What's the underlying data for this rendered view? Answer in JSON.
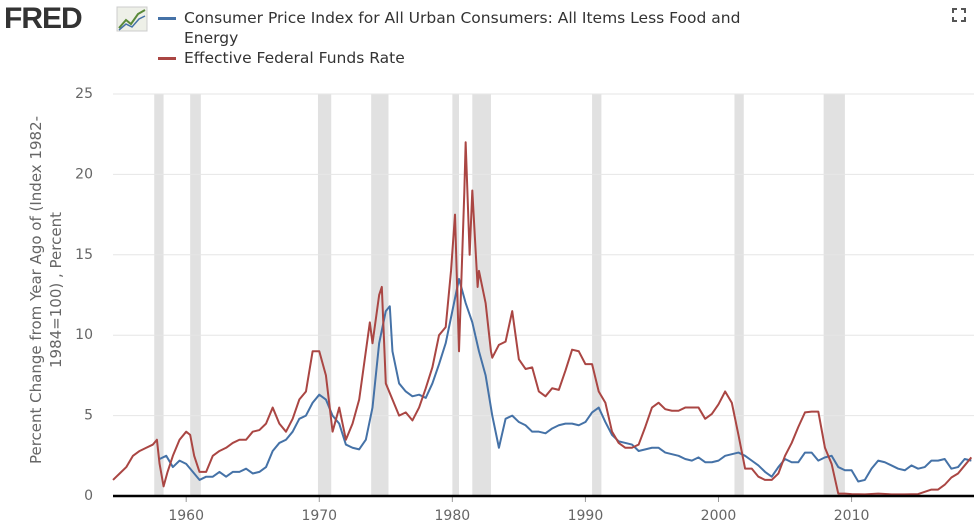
{
  "logo": "FRED",
  "chart_data": {
    "type": "line",
    "y_label": "Percent Change from Year Ago of (Index 1982-1984=100) , Percent",
    "xlim": [
      1954.5,
      2019.2
    ],
    "xticks": [
      1960,
      1970,
      1980,
      1990,
      2000,
      2010
    ],
    "ylim": [
      0,
      25
    ],
    "yticks": [
      0,
      5,
      10,
      15,
      20,
      25
    ],
    "grid": true,
    "recessions": [
      [
        1957.6,
        1958.3
      ],
      [
        1960.3,
        1961.1
      ],
      [
        1969.9,
        1970.9
      ],
      [
        1973.9,
        1975.2
      ],
      [
        1980.0,
        1980.5
      ],
      [
        1981.5,
        1982.9
      ],
      [
        1990.5,
        1991.2
      ],
      [
        2001.2,
        2001.9
      ],
      [
        2007.9,
        2009.5
      ]
    ],
    "recession_color": "#e1e1e1",
    "series": [
      {
        "name": "Consumer Price Index for All Urban Consumers: All Items Less Food and Energy",
        "color": "#4572a7",
        "x": [
          1958,
          1958.5,
          1959,
          1959.5,
          1960,
          1960.5,
          1961,
          1961.5,
          1962,
          1962.5,
          1963,
          1963.5,
          1964,
          1964.5,
          1965,
          1965.5,
          1966,
          1966.5,
          1967,
          1967.5,
          1968,
          1968.5,
          1969,
          1969.5,
          1970,
          1970.5,
          1971,
          1971.5,
          1972,
          1972.5,
          1973,
          1973.5,
          1974,
          1974.5,
          1975,
          1975.3,
          1975.5,
          1976,
          1976.5,
          1977,
          1977.5,
          1978,
          1978.5,
          1979,
          1979.5,
          1980,
          1980.5,
          1981,
          1981.5,
          1982,
          1982.5,
          1983,
          1983.5,
          1984,
          1984.5,
          1985,
          1985.5,
          1986,
          1986.5,
          1987,
          1987.5,
          1988,
          1988.5,
          1989,
          1989.5,
          1990,
          1990.5,
          1991,
          1991.5,
          1992,
          1992.5,
          1993,
          1993.5,
          1994,
          1994.5,
          1995,
          1995.5,
          1996,
          1996.5,
          1997,
          1997.5,
          1998,
          1998.5,
          1999,
          1999.5,
          2000,
          2000.5,
          2001,
          2001.5,
          2002,
          2002.5,
          2003,
          2003.5,
          2004,
          2004.5,
          2005,
          2005.5,
          2006,
          2006.5,
          2007,
          2007.5,
          2008,
          2008.5,
          2009,
          2009.5,
          2010,
          2010.5,
          2011,
          2011.5,
          2012,
          2012.5,
          2013,
          2013.5,
          2014,
          2014.5,
          2015,
          2015.5,
          2016,
          2016.5,
          2017,
          2017.5,
          2018,
          2018.5,
          2019
        ],
        "values": [
          2.3,
          2.5,
          1.8,
          2.2,
          2.0,
          1.5,
          1.0,
          1.2,
          1.2,
          1.5,
          1.2,
          1.5,
          1.5,
          1.7,
          1.4,
          1.5,
          1.8,
          2.8,
          3.3,
          3.5,
          4.0,
          4.8,
          5.0,
          5.8,
          6.3,
          6.0,
          5.0,
          4.5,
          3.2,
          3.0,
          2.9,
          3.5,
          5.5,
          9.5,
          11.5,
          11.8,
          9.0,
          7.0,
          6.5,
          6.2,
          6.3,
          6.1,
          7.0,
          8.2,
          9.5,
          11.5,
          13.5,
          12.0,
          10.8,
          9.0,
          7.5,
          5.0,
          3.0,
          4.8,
          5.0,
          4.6,
          4.4,
          4.0,
          4.0,
          3.9,
          4.2,
          4.4,
          4.5,
          4.5,
          4.4,
          4.6,
          5.2,
          5.5,
          4.6,
          3.8,
          3.4,
          3.3,
          3.2,
          2.8,
          2.9,
          3.0,
          3.0,
          2.7,
          2.6,
          2.5,
          2.3,
          2.2,
          2.4,
          2.1,
          2.1,
          2.2,
          2.5,
          2.6,
          2.7,
          2.5,
          2.2,
          1.9,
          1.5,
          1.2,
          1.8,
          2.3,
          2.1,
          2.1,
          2.7,
          2.7,
          2.2,
          2.4,
          2.5,
          1.8,
          1.6,
          1.6,
          0.9,
          1.0,
          1.7,
          2.2,
          2.1,
          1.9,
          1.7,
          1.6,
          1.9,
          1.7,
          1.8,
          2.2,
          2.2,
          2.3,
          1.7,
          1.8,
          2.3,
          2.2
        ]
      },
      {
        "name": "Effective Federal Funds Rate",
        "color": "#aa4643",
        "x": [
          1954.5,
          1955,
          1955.5,
          1956,
          1956.5,
          1957,
          1957.5,
          1957.8,
          1958,
          1958.3,
          1958.6,
          1959,
          1959.5,
          1960,
          1960.3,
          1960.6,
          1961,
          1961.5,
          1962,
          1962.5,
          1963,
          1963.5,
          1964,
          1964.5,
          1965,
          1965.5,
          1966,
          1966.5,
          1967,
          1967.5,
          1968,
          1968.5,
          1969,
          1969.5,
          1970,
          1970.5,
          1971,
          1971.5,
          1972,
          1972.5,
          1973,
          1973.5,
          1973.8,
          1974,
          1974.5,
          1974.7,
          1975,
          1975.5,
          1976,
          1976.5,
          1977,
          1977.5,
          1978,
          1978.5,
          1979,
          1979.5,
          1979.9,
          1980.2,
          1980.5,
          1980.9,
          1981,
          1981.3,
          1981.5,
          1981.9,
          1982,
          1982.5,
          1982.9,
          1983,
          1983.5,
          1984,
          1984.5,
          1985,
          1985.5,
          1986,
          1986.5,
          1987,
          1987.5,
          1988,
          1988.5,
          1989,
          1989.5,
          1990,
          1990.5,
          1991,
          1991.5,
          1992,
          1992.5,
          1993,
          1993.5,
          1994,
          1994.5,
          1995,
          1995.5,
          1996,
          1996.5,
          1997,
          1997.5,
          1998,
          1998.5,
          1999,
          1999.5,
          2000,
          2000.5,
          2001,
          2001.5,
          2002,
          2002.5,
          2003,
          2003.5,
          2004,
          2004.5,
          2005,
          2005.5,
          2006,
          2006.5,
          2007,
          2007.5,
          2008,
          2008.5,
          2009,
          2009.5,
          2010,
          2011,
          2012,
          2013,
          2014,
          2015,
          2016,
          2016.5,
          2017,
          2017.5,
          2018,
          2018.5,
          2019
        ],
        "values": [
          1.0,
          1.4,
          1.8,
          2.5,
          2.8,
          3.0,
          3.2,
          3.5,
          2.0,
          0.6,
          1.5,
          2.5,
          3.5,
          4.0,
          3.8,
          2.5,
          1.5,
          1.5,
          2.5,
          2.8,
          3.0,
          3.3,
          3.5,
          3.5,
          4.0,
          4.1,
          4.5,
          5.5,
          4.5,
          4.0,
          4.8,
          6.0,
          6.5,
          9.0,
          9.0,
          7.5,
          4.0,
          5.5,
          3.5,
          4.5,
          6.0,
          9.0,
          10.8,
          9.5,
          12.5,
          13.0,
          7.0,
          6.0,
          5.0,
          5.2,
          4.7,
          5.5,
          6.7,
          8.0,
          10.0,
          10.5,
          14,
          17.5,
          9.0,
          18.9,
          22,
          15,
          19,
          13,
          14,
          12,
          9,
          8.6,
          9.4,
          9.6,
          11.5,
          8.5,
          7.9,
          8.0,
          6.5,
          6.2,
          6.7,
          6.6,
          7.8,
          9.1,
          9.0,
          8.2,
          8.2,
          6.5,
          5.8,
          4.0,
          3.3,
          3.0,
          3.0,
          3.2,
          4.3,
          5.5,
          5.8,
          5.4,
          5.3,
          5.3,
          5.5,
          5.5,
          5.5,
          4.8,
          5.1,
          5.7,
          6.5,
          5.8,
          3.8,
          1.7,
          1.7,
          1.2,
          1.0,
          1.0,
          1.4,
          2.5,
          3.3,
          4.3,
          5.2,
          5.25,
          5.25,
          3.0,
          2.0,
          0.15,
          0.15,
          0.12,
          0.1,
          0.15,
          0.1,
          0.1,
          0.12,
          0.4,
          0.4,
          0.7,
          1.15,
          1.4,
          1.9,
          2.4
        ]
      }
    ]
  }
}
